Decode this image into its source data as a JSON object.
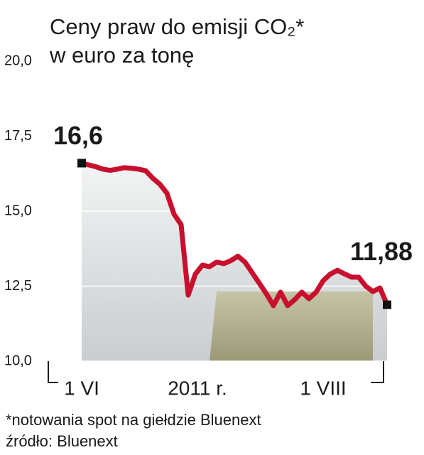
{
  "chart_data": {
    "type": "line",
    "title": "Ceny praw do emisji CO₂*",
    "subtitle": "w euro za tonę",
    "xlabel": "2011 r.",
    "footnote": "*notowania spot na giełdzie Bluenext",
    "source": "źródło: Bluenext",
    "categories": [
      "1 VI",
      null,
      null,
      null,
      null,
      null,
      null,
      null,
      null,
      null,
      null,
      null,
      null,
      null,
      null,
      null,
      null,
      null,
      null,
      null,
      null,
      null,
      null,
      null,
      null,
      null,
      null,
      null,
      null,
      null,
      null,
      null,
      null,
      null,
      "1 VIII",
      null,
      null,
      null,
      null,
      null,
      null,
      null,
      null,
      null
    ],
    "values": [
      16.6,
      16.54,
      16.48,
      16.4,
      16.36,
      16.4,
      16.45,
      16.43,
      16.4,
      16.35,
      16.1,
      15.9,
      15.6,
      14.9,
      14.55,
      12.2,
      12.9,
      13.2,
      13.15,
      13.3,
      13.25,
      13.35,
      13.5,
      13.3,
      12.95,
      12.6,
      12.25,
      11.85,
      12.3,
      11.85,
      12.05,
      12.3,
      12.08,
      12.3,
      12.68,
      12.9,
      13.03,
      12.91,
      12.8,
      12.8,
      12.5,
      12.32,
      12.44,
      11.88
    ],
    "value_labels": [
      "16,6",
      null,
      null,
      null,
      null,
      null,
      null,
      null,
      null,
      null,
      null,
      null,
      null,
      null,
      null,
      null,
      null,
      null,
      null,
      null,
      null,
      null,
      null,
      null,
      null,
      null,
      null,
      null,
      null,
      null,
      null,
      null,
      null,
      null,
      null,
      null,
      null,
      null,
      null,
      null,
      null,
      null,
      null,
      "11,88"
    ],
    "color": "#c8102e",
    "ylim": [
      10,
      20
    ],
    "yticks": [
      {
        "value": 10,
        "label": "10,0"
      },
      {
        "value": 12.5,
        "label": "12,5"
      },
      {
        "value": 15,
        "label": "15,0"
      },
      {
        "value": 17.5,
        "label": "17,5"
      },
      {
        "value": 20,
        "label": "20,0"
      }
    ],
    "grid": true
  }
}
